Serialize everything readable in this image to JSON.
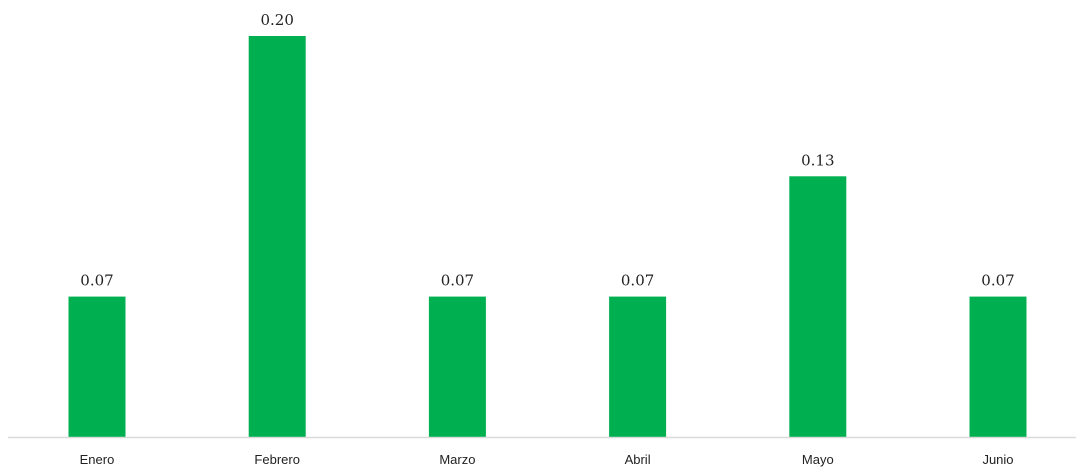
{
  "chart_data": {
    "type": "bar",
    "categories": [
      "Enero",
      "Febrero",
      "Marzo",
      "Abril",
      "Mayo",
      "Junio"
    ],
    "values": [
      0.07,
      0.2,
      0.07,
      0.07,
      0.13,
      0.07
    ],
    "value_labels": [
      "0.07",
      "0.20",
      "0.07",
      "0.07",
      "0.13",
      "0.07"
    ],
    "title": "",
    "xlabel": "",
    "ylabel": "",
    "ylim": [
      0,
      0.2
    ],
    "grid": false,
    "legend": "none",
    "bar_color": "#00b050",
    "axis_color": "#d9d9d9"
  }
}
